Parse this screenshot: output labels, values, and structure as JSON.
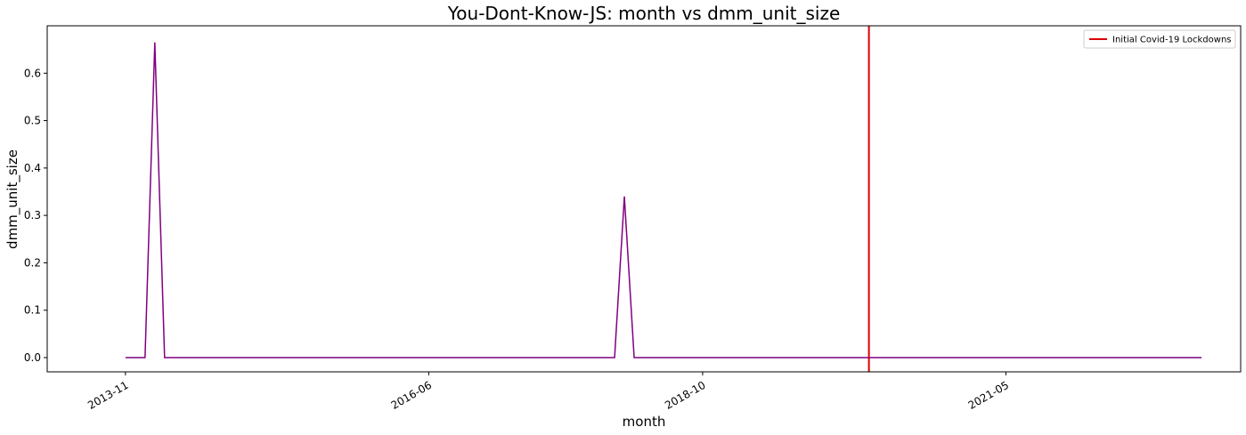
{
  "chart_data": {
    "type": "line",
    "title": "You-Dont-Know-JS: month vs dmm_unit_size",
    "xlabel": "month",
    "ylabel": "dmm_unit_size",
    "x_ticks": [
      "2013-11",
      "2016-06",
      "2018-10",
      "2021-05"
    ],
    "y_ticks": [
      "0.0",
      "0.1",
      "0.2",
      "0.3",
      "0.4",
      "0.5",
      "0.6"
    ],
    "ylim": [
      -0.03,
      0.7
    ],
    "xlim": [
      "2013-03",
      "2023-05"
    ],
    "legend_position": "top-right",
    "series": [
      {
        "name": "",
        "color": "#800080",
        "x": [
          "2013-11",
          "2013-12",
          "2014-01",
          "2014-02",
          "2014-03",
          "2018-01",
          "2018-02",
          "2018-03",
          "2023-01"
        ],
        "y": [
          0.0,
          0.0,
          0.0,
          0.665,
          0.0,
          0.0,
          0.34,
          0.0,
          0.0
        ]
      }
    ],
    "vlines": [
      {
        "label": "Initial Covid-19 Lockdowns",
        "x": "2020-03",
        "color": "#dd0000"
      }
    ]
  }
}
